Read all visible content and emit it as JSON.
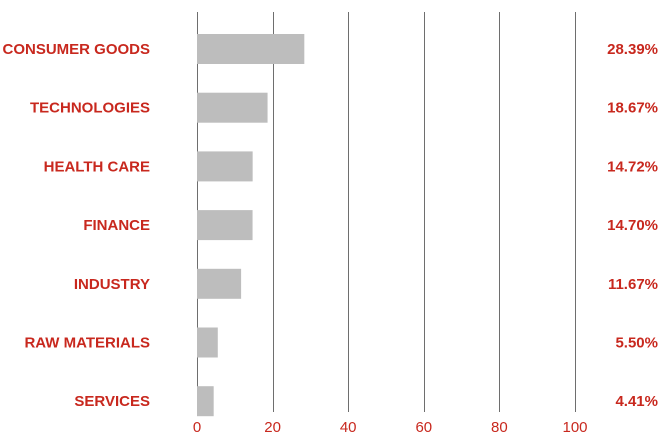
{
  "chart_data": {
    "type": "bar",
    "orientation": "horizontal",
    "categories": [
      "CONSUMER GOODS",
      "TECHNOLOGIES",
      "HEALTH CARE",
      "FINANCE",
      "INDUSTRY",
      "RAW MATERIALS",
      "SERVICES"
    ],
    "values": [
      28.39,
      18.67,
      14.72,
      14.7,
      11.67,
      5.5,
      4.41
    ],
    "value_labels": [
      "28.39%",
      "18.67%",
      "14.72%",
      "14.70%",
      "11.67%",
      "5.50%",
      "4.41%"
    ],
    "xlim": [
      0,
      100
    ],
    "xticks": [
      0,
      20,
      40,
      60,
      80,
      100
    ],
    "xtick_labels": [
      "0",
      "20",
      "40",
      "60",
      "80",
      "100"
    ],
    "grid": "vertical",
    "title": "",
    "xlabel": "",
    "ylabel": "",
    "colors": {
      "bar": "#bdbdbd",
      "label": "#c8281e",
      "grid": "#6e6e6e"
    }
  }
}
